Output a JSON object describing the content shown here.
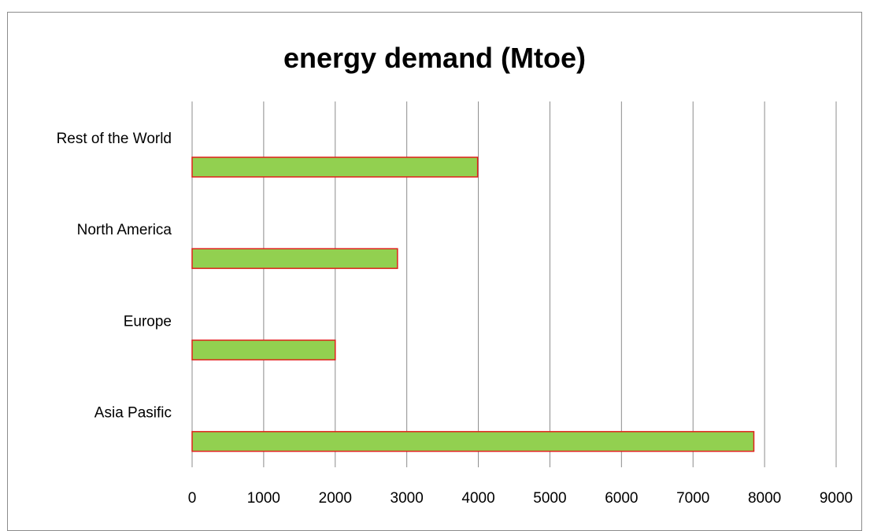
{
  "chart_data": {
    "type": "bar",
    "orientation": "horizontal",
    "title": "energy demand (Mtoe)",
    "xlabel": "",
    "ylabel": "",
    "categories": [
      "Asia Pasific",
      "Europe",
      "North America",
      "Rest of the World"
    ],
    "values": [
      7850,
      2000,
      2870,
      3990
    ],
    "xlim": [
      0,
      9000
    ],
    "xticks": [
      "0",
      "1000",
      "2000",
      "3000",
      "4000",
      "5000",
      "6000",
      "7000",
      "8000",
      "9000"
    ],
    "grid": "vertical",
    "legend": "none",
    "colors": {
      "bar_fill": "#92d050",
      "bar_border": "#e0201b",
      "gridline": "#8c8c8c",
      "frame": "#8c8c8c"
    }
  }
}
